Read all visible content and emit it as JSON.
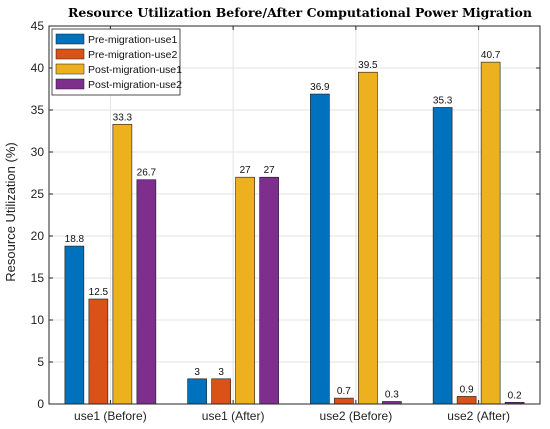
{
  "chart_data": {
    "type": "bar",
    "title": "Resource Utilization Before/After Computational Power Migration",
    "xlabel": "",
    "ylabel": "Resource Utilization (%)",
    "ylim": [
      0,
      45
    ],
    "yticks": [
      0,
      5,
      10,
      15,
      20,
      25,
      30,
      35,
      40,
      45
    ],
    "grid": true,
    "legend_position": "top-left",
    "categories": [
      "use1 (Before)",
      "use1 (After)",
      "use2 (Before)",
      "use2 (After)"
    ],
    "series": [
      {
        "name": "Pre-migration-use1",
        "color": "#0072BD",
        "values": [
          18.8,
          3,
          36.9,
          35.3
        ]
      },
      {
        "name": "Pre-migration-use2",
        "color": "#D95319",
        "values": [
          12.5,
          3,
          0.7,
          0.9
        ]
      },
      {
        "name": "Post-migration-use1",
        "color": "#EDB120",
        "values": [
          33.3,
          27,
          39.5,
          40.7
        ]
      },
      {
        "name": "Post-migration-use2",
        "color": "#7E2F8E",
        "values": [
          26.7,
          27,
          0.3,
          0.2
        ]
      }
    ],
    "data_labels": [
      [
        "18.8",
        "3",
        "36.9",
        "35.3"
      ],
      [
        "12.5",
        "3",
        "0.7",
        "0.9"
      ],
      [
        "33.3",
        "27",
        "39.5",
        "40.7"
      ],
      [
        "26.7",
        "27",
        "0.3",
        "0.2"
      ]
    ]
  }
}
